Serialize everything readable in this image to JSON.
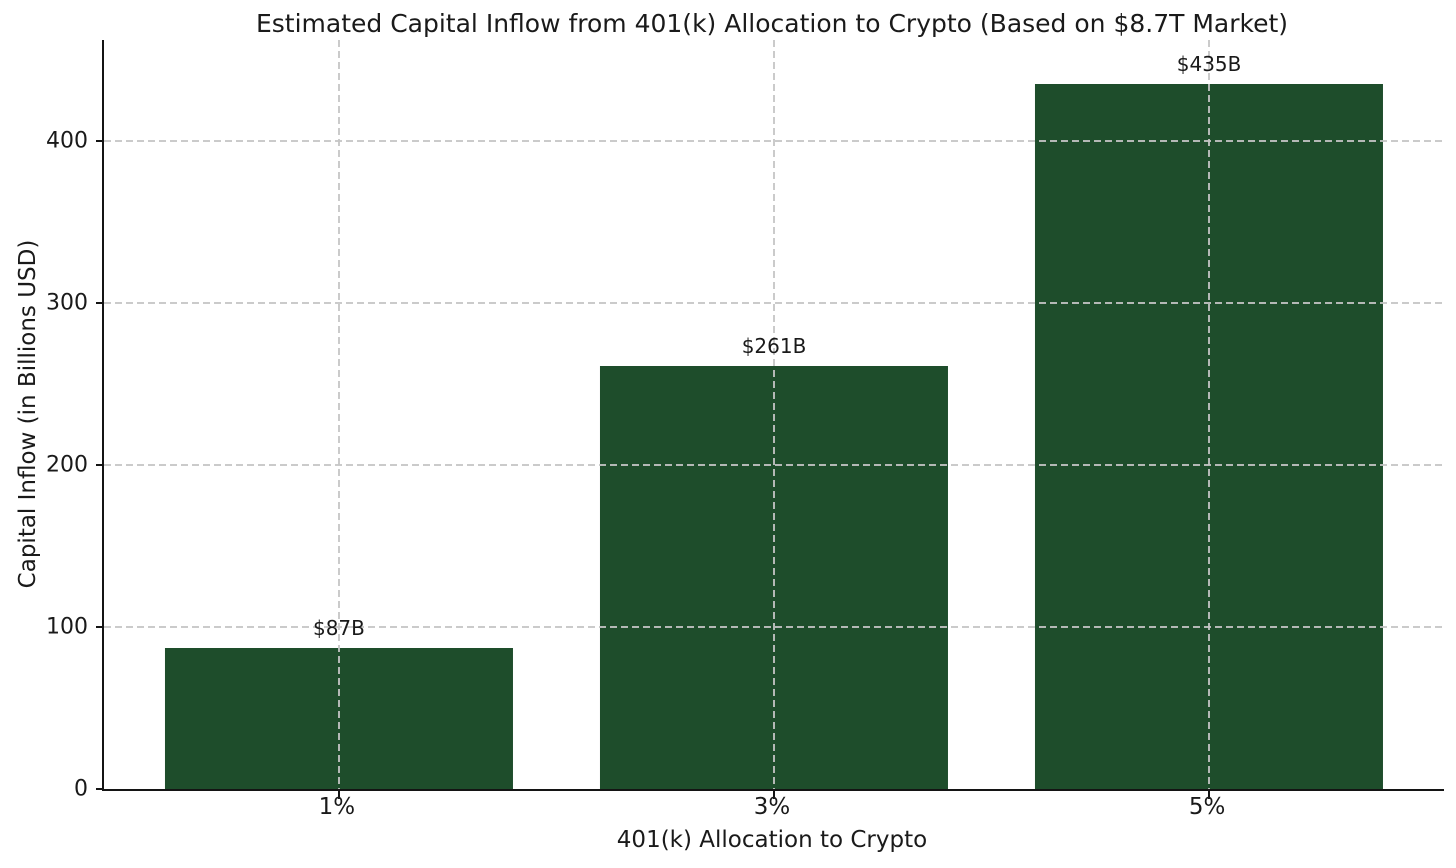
{
  "chart_data": {
    "type": "bar",
    "title": "Estimated Capital Inflow from 401(k) Allocation to Crypto (Based on $8.7T Market)",
    "xlabel": "401(k) Allocation to Crypto",
    "ylabel": "Capital Inflow (in Billions USD)",
    "categories": [
      "1%",
      "3%",
      "5%"
    ],
    "values": [
      87,
      261,
      435
    ],
    "bar_labels": [
      "$87B",
      "$261B",
      "$435B"
    ],
    "yticks": [
      0,
      100,
      200,
      300,
      400
    ],
    "ylim": [
      0,
      462
    ],
    "bar_width_fraction": 0.8,
    "grid": "dashed gray gridlines, horizontal and vertical, drawn above bars",
    "legend": "none",
    "colors": {
      "bar": "#1e4d2b",
      "grid": "#c5c5c5",
      "axis": "#141414",
      "text": "#1a1a1a",
      "background": "#ffffff"
    }
  }
}
